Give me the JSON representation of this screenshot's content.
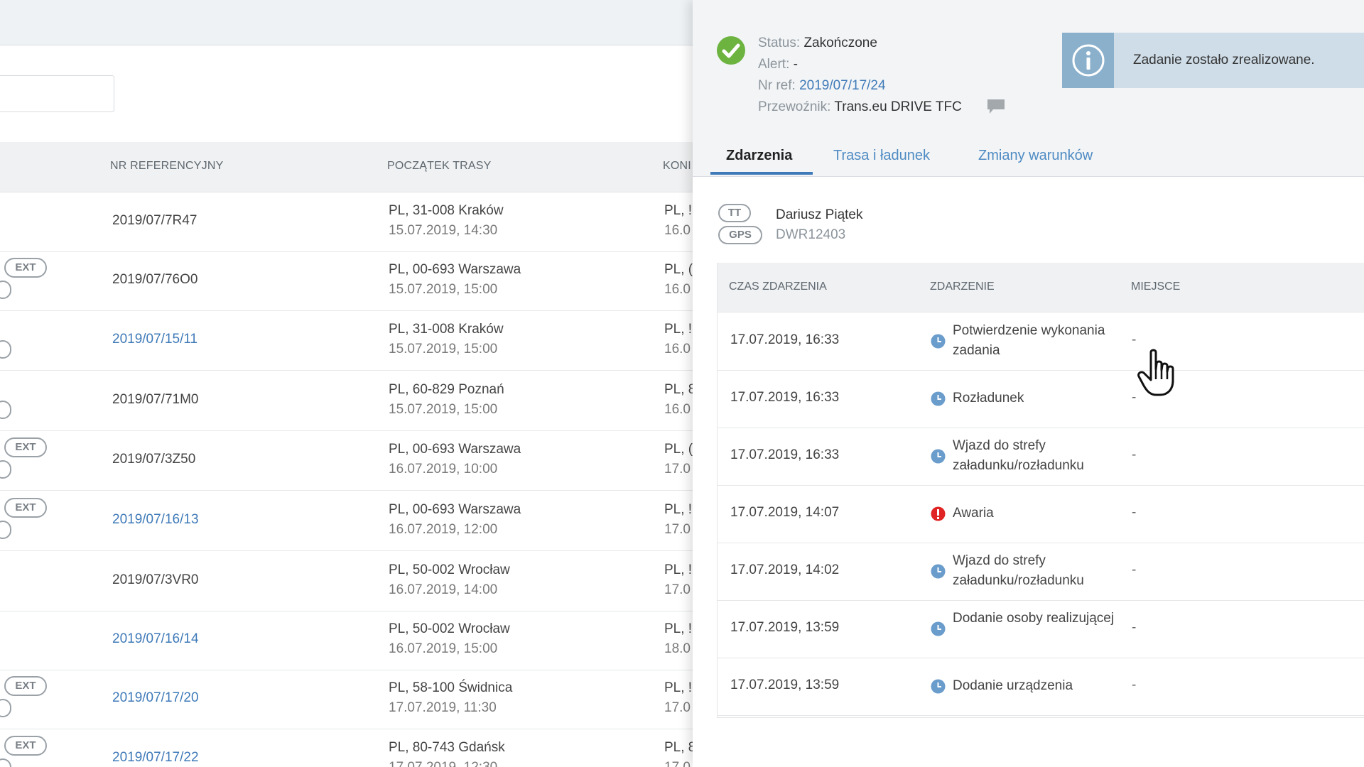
{
  "list": {
    "headers": {
      "ref": "NR REFERENCYJNY",
      "start": "POCZĄTEK TRASY",
      "end": "KONI"
    },
    "rows": [
      {
        "ref": "2019/07/7R47",
        "start_place": "PL, 31-008 Kraków",
        "start_time": "15.07.2019, 14:30",
        "end_place": "PL, !",
        "end_time": "16.0"
      },
      {
        "ref": "2019/07/76O0",
        "start_place": "PL, 00-693 Warszawa",
        "start_time": "15.07.2019, 15:00",
        "end_place": "PL, (",
        "end_time": "16.0",
        "badge": "EXT"
      },
      {
        "ref": "2019/07/15/11",
        "start_place": "PL, 31-008 Kraków",
        "start_time": "15.07.2019, 15:00",
        "end_place": "PL, !",
        "end_time": "16.0"
      },
      {
        "ref": "2019/07/71M0",
        "start_place": "PL, 60-829 Poznań",
        "start_time": "15.07.2019, 15:00",
        "end_place": "PL, 8",
        "end_time": "16.0"
      },
      {
        "ref": "2019/07/3Z50",
        "start_place": "PL, 00-693 Warszawa",
        "start_time": "16.07.2019, 10:00",
        "end_place": "PL, (",
        "end_time": "17.0",
        "badge": "EXT"
      },
      {
        "ref": "2019/07/16/13",
        "start_place": "PL, 00-693 Warszawa",
        "start_time": "16.07.2019, 12:00",
        "end_place": "PL, !",
        "end_time": "17.0",
        "badge": "EXT"
      },
      {
        "ref": "2019/07/3VR0",
        "start_place": "PL, 50-002 Wrocław",
        "start_time": "16.07.2019, 14:00",
        "end_place": "PL, !",
        "end_time": "17.0"
      },
      {
        "ref": "2019/07/16/14",
        "start_place": "PL, 50-002 Wrocław",
        "start_time": "16.07.2019, 15:00",
        "end_place": "PL, !",
        "end_time": "18.0"
      },
      {
        "ref": "2019/07/17/20",
        "start_place": "PL, 58-100 Świdnica",
        "start_time": "17.07.2019, 11:30",
        "end_place": "PL, !",
        "end_time": "17.0",
        "badge": "EXT"
      },
      {
        "ref": "2019/07/17/22",
        "start_place": "PL, 80-743 Gdańsk",
        "start_time": "17.07.2019, 12:30",
        "end_place": "PL, 8",
        "end_time": "17.0",
        "badge": "EXT"
      }
    ]
  },
  "detail": {
    "status_label": "Status:",
    "status_value": "Zakończone",
    "alert_label": "Alert:",
    "alert_value": "-",
    "ref_label": "Nr ref:",
    "ref_value": "2019/07/17/24",
    "carrier_label": "Przewoźnik:",
    "carrier_value": "Trans.eu DRIVE TFC",
    "info_message": "Zadanie zostało zrealizowane.",
    "tabs": [
      "Zdarzenia",
      "Trasa i ładunek",
      "Zmiany warunków"
    ],
    "tag_tt": "TT",
    "tag_gps": "GPS",
    "driver": "Dariusz Piątek",
    "device": "DWR12403",
    "events_headers": {
      "time": "CZAS ZDARZENIA",
      "event": "ZDARZENIE",
      "place": "MIEJSCE"
    },
    "events": [
      {
        "time": "17.07.2019, 16:33",
        "name": "Potwierdzenie wykonania zadania",
        "place": "-",
        "kind": "clock"
      },
      {
        "time": "17.07.2019, 16:33",
        "name": "Rozładunek",
        "place": "-",
        "kind": "clock"
      },
      {
        "time": "17.07.2019, 16:33",
        "name": "Wjazd do strefy załadunku/rozładunku",
        "place": "-",
        "kind": "clock"
      },
      {
        "time": "17.07.2019, 14:07",
        "name": "Awaria",
        "place": "-",
        "kind": "alert"
      },
      {
        "time": "17.07.2019, 14:02",
        "name": "Wjazd do strefy załadunku/rozładunku",
        "place": "-",
        "kind": "clock"
      },
      {
        "time": "17.07.2019, 13:59",
        "name": "Dodanie osoby realizującej",
        "place": "-",
        "kind": "clock"
      },
      {
        "time": "17.07.2019, 13:59",
        "name": "Dodanie urządzenia",
        "place": "-",
        "kind": "clock"
      }
    ]
  },
  "colors": {
    "accent": "#3f7ab8",
    "success": "#6cb33f",
    "danger": "#e02424",
    "clock": "#6a9ccc",
    "info_bg": "#cfdde8"
  },
  "icons": [
    "check-circle-icon",
    "info-icon",
    "chat-icon",
    "clock-icon",
    "alert-icon",
    "hand-cursor-icon"
  ]
}
